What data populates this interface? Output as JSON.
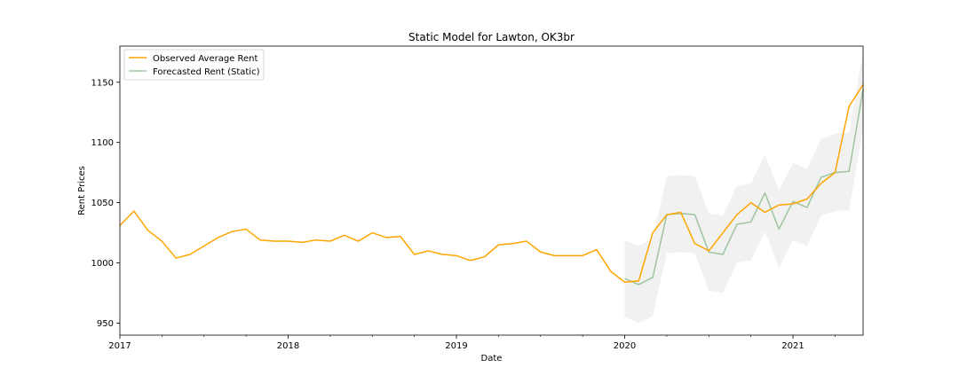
{
  "chart_data": {
    "type": "line",
    "title": "Static Model for Lawton, OK3br",
    "xlabel": "Date",
    "ylabel": "Rent Prices",
    "xlim": [
      "2017-01",
      "2021-06"
    ],
    "ylim": [
      940,
      1180
    ],
    "x_ticks": [
      "2017",
      "2018",
      "2019",
      "2020",
      "2021"
    ],
    "y_ticks": [
      950,
      1000,
      1050,
      1100,
      1150
    ],
    "grid": false,
    "legend_position": "upper left",
    "series": [
      {
        "name": "Observed Average Rent",
        "color": "#ffa500",
        "x": [
          "2017-01",
          "2017-02",
          "2017-03",
          "2017-04",
          "2017-05",
          "2017-06",
          "2017-07",
          "2017-08",
          "2017-09",
          "2017-10",
          "2017-11",
          "2017-12",
          "2018-01",
          "2018-02",
          "2018-03",
          "2018-04",
          "2018-05",
          "2018-06",
          "2018-07",
          "2018-08",
          "2018-09",
          "2018-10",
          "2018-11",
          "2018-12",
          "2019-01",
          "2019-02",
          "2019-03",
          "2019-04",
          "2019-05",
          "2019-06",
          "2019-07",
          "2019-08",
          "2019-09",
          "2019-10",
          "2019-11",
          "2019-12",
          "2020-01",
          "2020-02",
          "2020-03",
          "2020-04",
          "2020-05",
          "2020-06",
          "2020-07",
          "2020-08",
          "2020-09",
          "2020-10",
          "2020-11",
          "2020-12",
          "2021-01",
          "2021-02",
          "2021-03",
          "2021-04",
          "2021-05",
          "2021-06"
        ],
        "values": [
          1031,
          1043,
          1027,
          1018,
          1004,
          1007,
          1014,
          1021,
          1026,
          1028,
          1019,
          1018,
          1018,
          1017,
          1019,
          1018,
          1023,
          1018,
          1025,
          1021,
          1022,
          1007,
          1010,
          1007,
          1006,
          1002,
          1005,
          1015,
          1016,
          1018,
          1009,
          1006,
          1006,
          1006,
          1011,
          993,
          984,
          985,
          1025,
          1040,
          1042,
          1016,
          1010,
          1025,
          1040,
          1050,
          1042,
          1048,
          1049,
          1053,
          1066,
          1075,
          1130,
          1148
        ]
      },
      {
        "name": "Forecasted Rent (Static)",
        "color": "#8fbc8f",
        "x": [
          "2020-01",
          "2020-02",
          "2020-03",
          "2020-04",
          "2020-05",
          "2020-06",
          "2020-07",
          "2020-08",
          "2020-09",
          "2020-10",
          "2020-11",
          "2020-12",
          "2021-01",
          "2021-02",
          "2021-03",
          "2021-04",
          "2021-05",
          "2021-06"
        ],
        "values": [
          987,
          982,
          988,
          1040,
          1041,
          1040,
          1009,
          1007,
          1032,
          1034,
          1058,
          1028,
          1051,
          1046,
          1071,
          1075,
          1076,
          1144
        ],
        "ci_lower": [
          955,
          950,
          956,
          1008,
          1009,
          1008,
          977,
          975,
          1000,
          1002,
          1026,
          996,
          1019,
          1014,
          1039,
          1043,
          1044,
          1112
        ],
        "ci_upper": [
          1019,
          1014,
          1020,
          1072,
          1073,
          1072,
          1041,
          1039,
          1064,
          1066,
          1090,
          1060,
          1083,
          1078,
          1103,
          1107,
          1108,
          1176
        ]
      }
    ]
  }
}
